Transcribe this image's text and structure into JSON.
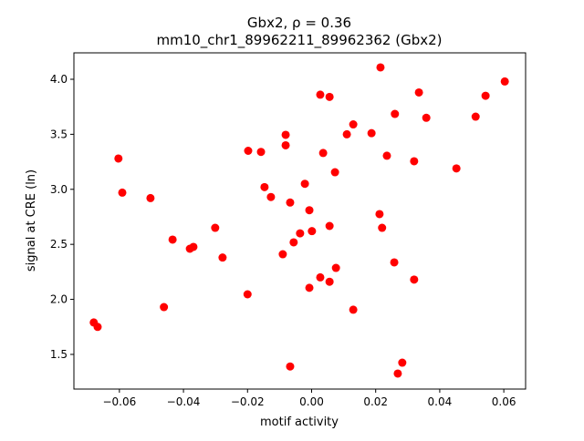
{
  "chart_data": {
    "type": "scatter",
    "title": "Gbx2, ρ = 0.36",
    "subtitle": "mm10_chr1_89962211_89962362 (Gbx2)",
    "xlabel": "motif activity",
    "ylabel": "signal at CRE (ln)",
    "xlim": [
      -0.0742,
      0.0668
    ],
    "ylim": [
      1.185,
      4.24
    ],
    "xticks": [
      -0.06,
      -0.04,
      -0.02,
      0.0,
      0.02,
      0.04,
      0.06
    ],
    "xtick_labels": [
      "−0.06",
      "−0.04",
      "−0.02",
      "0.00",
      "0.02",
      "0.04",
      "0.06"
    ],
    "yticks": [
      1.5,
      2.0,
      2.5,
      3.0,
      3.5,
      4.0
    ],
    "ytick_labels": [
      "1.5",
      "2.0",
      "2.5",
      "3.0",
      "3.5",
      "4.0"
    ],
    "grid": false,
    "marker_color": "#ff0000",
    "points": [
      [
        0.0215,
        4.108
      ],
      [
        0.0027,
        3.86
      ],
      [
        0.0056,
        3.84
      ],
      [
        0.0603,
        3.98
      ],
      [
        0.0335,
        3.88
      ],
      [
        0.0543,
        3.85
      ],
      [
        0.0512,
        3.66
      ],
      [
        0.0358,
        3.65
      ],
      [
        0.026,
        3.685
      ],
      [
        0.013,
        3.59
      ],
      [
        0.011,
        3.5
      ],
      [
        0.0187,
        3.51
      ],
      [
        -0.0081,
        3.495
      ],
      [
        -0.0081,
        3.4
      ],
      [
        -0.0198,
        3.35
      ],
      [
        -0.0158,
        3.34
      ],
      [
        0.0036,
        3.33
      ],
      [
        0.0235,
        3.305
      ],
      [
        0.032,
        3.255
      ],
      [
        -0.0603,
        3.28
      ],
      [
        0.0452,
        3.19
      ],
      [
        0.0073,
        3.155
      ],
      [
        -0.0021,
        3.05
      ],
      [
        -0.0147,
        3.02
      ],
      [
        -0.0591,
        2.97
      ],
      [
        -0.0503,
        2.92
      ],
      [
        -0.0127,
        2.93
      ],
      [
        -0.0067,
        2.88
      ],
      [
        -0.0007,
        2.81
      ],
      [
        0.0212,
        2.775
      ],
      [
        -0.0301,
        2.65
      ],
      [
        0.0056,
        2.667
      ],
      [
        0.022,
        2.65
      ],
      [
        -0.0036,
        2.6
      ],
      [
        0.0001,
        2.62
      ],
      [
        -0.0434,
        2.543
      ],
      [
        -0.0056,
        2.518
      ],
      [
        -0.0369,
        2.477
      ],
      [
        -0.038,
        2.46
      ],
      [
        -0.0278,
        2.38
      ],
      [
        -0.009,
        2.41
      ],
      [
        0.0258,
        2.336
      ],
      [
        0.0076,
        2.286
      ],
      [
        0.0027,
        2.2
      ],
      [
        0.0056,
        2.16
      ],
      [
        0.032,
        2.18
      ],
      [
        -0.0007,
        2.105
      ],
      [
        -0.02,
        2.046
      ],
      [
        -0.0461,
        1.93
      ],
      [
        0.013,
        1.906
      ],
      [
        -0.068,
        1.79
      ],
      [
        -0.0668,
        1.75
      ],
      [
        -0.0067,
        1.39
      ],
      [
        0.0283,
        1.425
      ],
      [
        0.0269,
        1.326
      ]
    ]
  }
}
